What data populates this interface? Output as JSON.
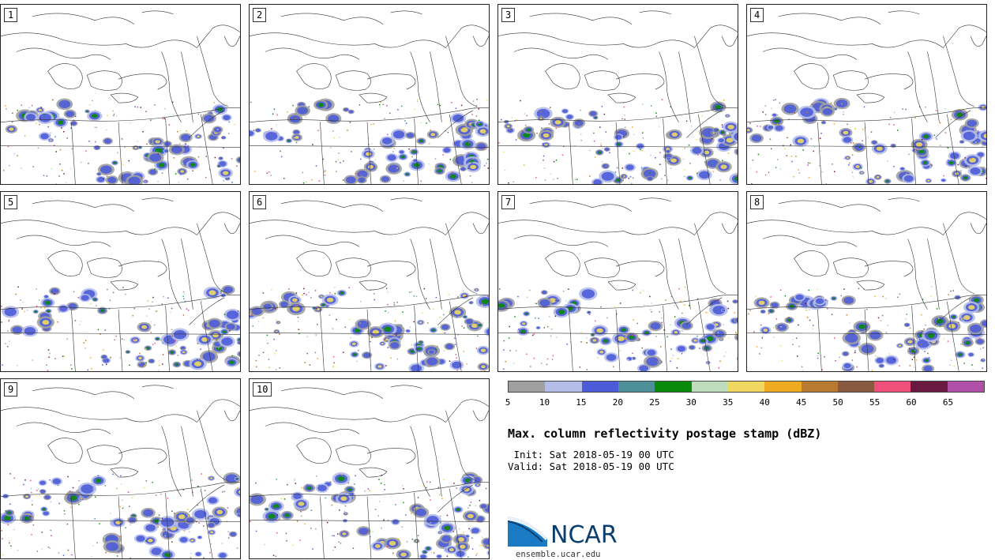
{
  "panels": [
    {
      "label": "1"
    },
    {
      "label": "2"
    },
    {
      "label": "3"
    },
    {
      "label": "4"
    },
    {
      "label": "5"
    },
    {
      "label": "6"
    },
    {
      "label": "7"
    },
    {
      "label": "8"
    },
    {
      "label": "9"
    },
    {
      "label": "10"
    }
  ],
  "colorbar": {
    "colors": [
      "#a0a0a0",
      "#b4bce8",
      "#4c5cd8",
      "#4d9099",
      "#0a8a0a",
      "#bcdcbc",
      "#f0d860",
      "#eeaa20",
      "#b87a30",
      "#8a5a40",
      "#f0507a",
      "#6a1a40",
      "#b050a8"
    ],
    "ticks": [
      "5",
      "10",
      "15",
      "20",
      "25",
      "30",
      "35",
      "40",
      "45",
      "50",
      "55",
      "60",
      "65"
    ]
  },
  "title": "Max. column reflectivity postage stamp (dBZ)",
  "init": " Init: Sat 2018-05-19 00 UTC",
  "valid": "Valid: Sat 2018-05-19 00 UTC",
  "logo": {
    "text": "NCAR",
    "icon": "ncar-logo-icon"
  },
  "site": "ensemble.ucar.edu"
}
